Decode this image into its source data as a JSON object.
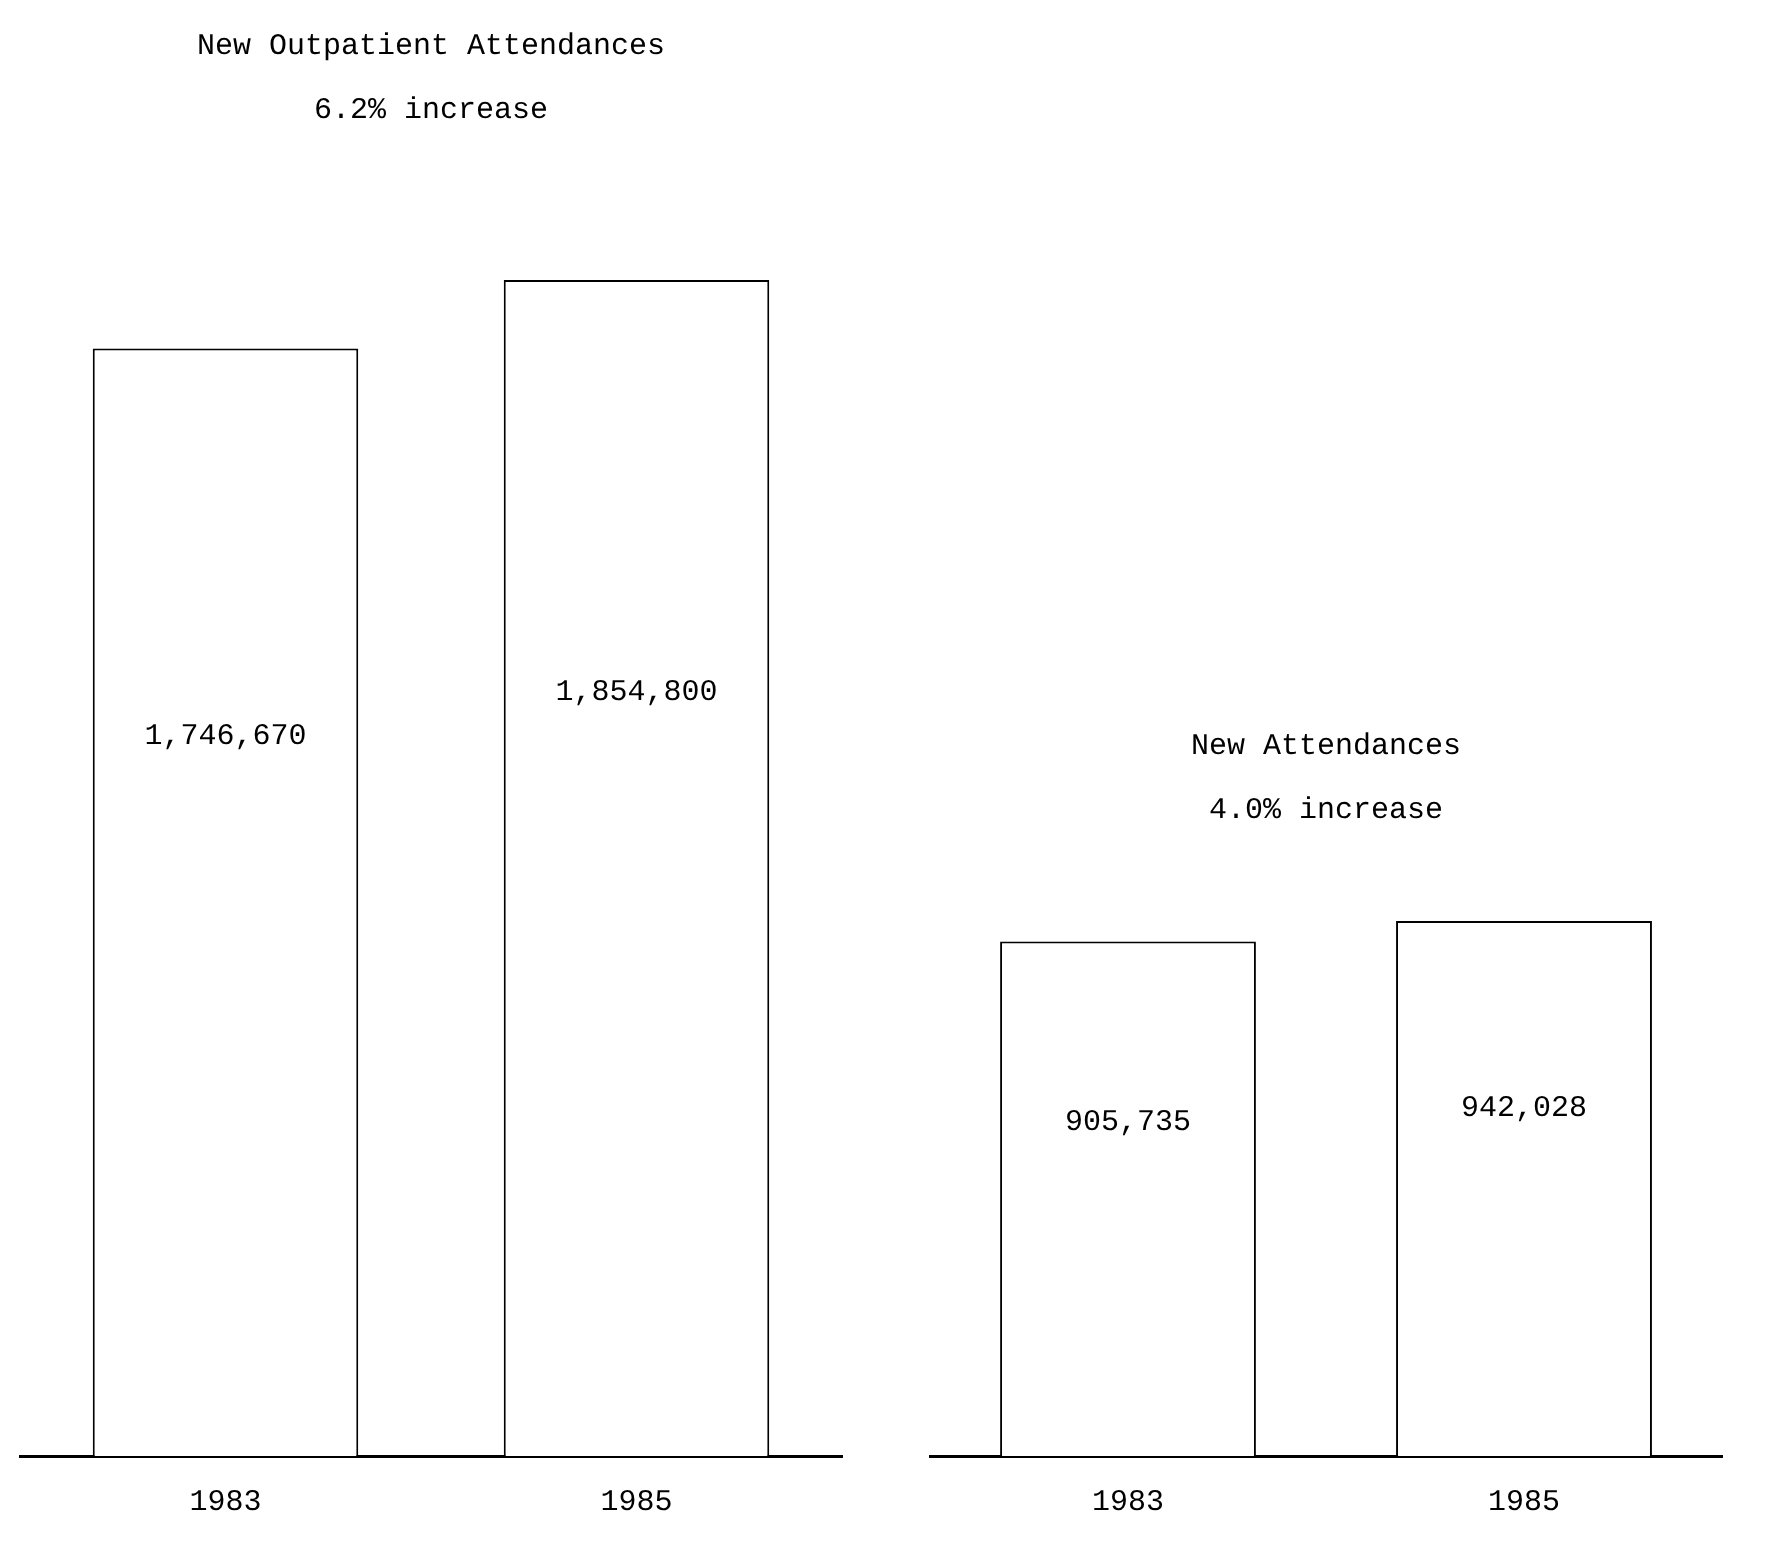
{
  "chart_data": [
    {
      "type": "bar",
      "title": "New Outpatient Attendances",
      "subtitle": "6.2% increase",
      "categories": [
        "1983",
        "1985"
      ],
      "values": [
        1746670,
        1854800
      ],
      "value_labels": [
        "1,746,670",
        "1,854,800"
      ],
      "color": "#ffffff",
      "grid": false,
      "legend": false,
      "tick_labels": "x"
    },
    {
      "type": "bar",
      "title": "New Attendances",
      "subtitle": "4.0% increase",
      "categories": [
        "1983",
        "1985"
      ],
      "values": [
        905735,
        942028
      ],
      "value_labels": [
        "905,735",
        "942,028"
      ],
      "color": "#ffffff",
      "grid": false,
      "legend": false,
      "tick_labels": "x"
    }
  ]
}
